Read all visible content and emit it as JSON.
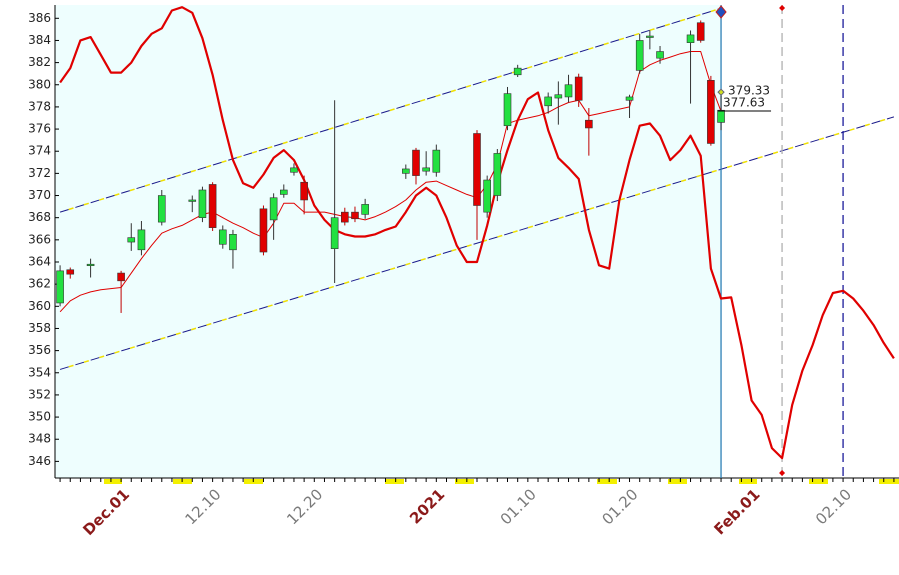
{
  "chart_data": {
    "type": "candlestick",
    "categories": [
      null,
      null,
      null,
      null,
      null,
      null,
      "Dec.01",
      null,
      null,
      null,
      null,
      null,
      null,
      null,
      null,
      "12.10",
      null,
      null,
      null,
      null,
      null,
      null,
      null,
      null,
      null,
      "12.20",
      null,
      null,
      null,
      null,
      null,
      null,
      null,
      null,
      null,
      null,
      null,
      "2021",
      null,
      null,
      null,
      null,
      null,
      null,
      null,
      null,
      "01.10",
      null,
      null,
      null,
      null,
      null,
      null,
      null,
      null,
      null,
      "01.20",
      null,
      null,
      null,
      null,
      null,
      null,
      null,
      null,
      null,
      null,
      null,
      "Feb.01",
      null,
      null,
      null,
      null,
      null,
      null,
      null,
      null,
      "02.10",
      null,
      null,
      null,
      null,
      null
    ],
    "major_ticks": [
      6,
      37,
      68
    ],
    "major_color": "#8b1a1a",
    "minor_color": "#7a7a7a",
    "ylim": [
      344.5,
      387.2
    ],
    "yticks": [
      346,
      348,
      350,
      352,
      354,
      356,
      358,
      360,
      362,
      364,
      366,
      368,
      370,
      372,
      374,
      376,
      378,
      380,
      382,
      384,
      386
    ],
    "up_color": "#22e040",
    "down_color": "#e00000",
    "ohlc": [
      [
        360.3,
        363.7,
        360.0,
        363.2
      ],
      [
        363.3,
        363.5,
        362.5,
        362.9
      ],
      null,
      [
        363.8,
        364.3,
        362.6,
        363.8
      ],
      null,
      null,
      [
        363.0,
        363.2,
        359.4,
        362.3
      ],
      [
        365.8,
        367.5,
        365.0,
        366.2
      ],
      [
        365.1,
        367.7,
        364.6,
        366.9
      ],
      null,
      [
        367.6,
        370.5,
        367.3,
        370.0
      ],
      null,
      null,
      [
        369.5,
        370.0,
        368.5,
        369.6
      ],
      [
        368.0,
        370.8,
        367.6,
        370.5
      ],
      [
        371.0,
        371.2,
        366.8,
        367.1
      ],
      [
        365.6,
        367.3,
        365.2,
        366.9
      ],
      [
        365.1,
        366.9,
        363.4,
        366.5
      ],
      null,
      null,
      [
        368.8,
        369.1,
        364.6,
        364.9
      ],
      [
        367.8,
        370.2,
        366.0,
        369.8
      ],
      [
        370.1,
        371.0,
        369.8,
        370.5
      ],
      [
        372.1,
        372.9,
        371.8,
        372.5
      ],
      [
        371.2,
        371.8,
        368.3,
        369.6
      ],
      null,
      null,
      [
        365.2,
        378.6,
        362.1,
        368.0
      ],
      [
        368.5,
        368.9,
        367.3,
        367.6
      ],
      [
        368.5,
        369.0,
        367.6,
        367.9
      ],
      [
        368.3,
        369.7,
        367.9,
        369.2
      ],
      null,
      null,
      null,
      [
        372.0,
        372.8,
        371.5,
        372.4
      ],
      [
        374.1,
        374.3,
        371.0,
        371.8
      ],
      [
        372.2,
        374.0,
        371.8,
        372.5
      ],
      [
        372.1,
        374.6,
        371.7,
        374.1
      ],
      null,
      null,
      null,
      [
        375.6,
        375.9,
        366.0,
        369.1
      ],
      [
        368.5,
        371.8,
        368.0,
        371.4
      ],
      [
        370.0,
        374.2,
        369.5,
        373.8
      ],
      [
        376.3,
        379.8,
        375.9,
        379.2
      ],
      [
        380.9,
        381.8,
        380.7,
        381.5
      ],
      null,
      null,
      [
        378.1,
        379.3,
        377.4,
        378.9
      ],
      [
        378.8,
        380.3,
        376.4,
        379.1
      ],
      [
        378.9,
        380.9,
        378.4,
        380.0
      ],
      [
        380.7,
        381.0,
        378.0,
        378.6
      ],
      [
        376.8,
        377.9,
        373.6,
        376.1
      ],
      null,
      null,
      null,
      [
        378.6,
        379.1,
        377.0,
        378.9
      ],
      [
        381.3,
        384.6,
        381.0,
        384.0
      ],
      [
        384.4,
        384.9,
        383.2,
        384.4
      ],
      [
        382.4,
        383.5,
        381.9,
        383.0
      ],
      null,
      null,
      [
        383.8,
        384.9,
        378.3,
        384.5
      ],
      [
        385.6,
        385.8,
        383.8,
        384.0
      ],
      [
        380.4,
        380.8,
        374.5,
        374.7
      ],
      [
        376.6,
        379.3,
        375.9,
        377.7
      ],
      null,
      null,
      null,
      null,
      null,
      null,
      null,
      null,
      null,
      null,
      null,
      null,
      null,
      null,
      null,
      null,
      null
    ],
    "series": [
      {
        "color": "#e00000",
        "width": 2.2,
        "values": [
          380.2,
          381.5,
          384.0,
          384.3,
          382.7,
          381.1,
          381.1,
          382.0,
          383.5,
          384.6,
          385.1,
          386.7,
          387.0,
          386.5,
          384.2,
          380.9,
          376.8,
          373.2,
          371.1,
          370.7,
          371.9,
          373.4,
          374.1,
          373.2,
          371.4,
          369.1,
          367.8,
          366.9,
          366.5,
          366.3,
          366.3,
          366.5,
          366.9,
          367.2,
          368.5,
          370.0,
          370.7,
          370.0,
          368.0,
          365.5,
          364.0,
          364.0,
          367.3,
          371.1,
          374.1,
          376.8,
          378.7,
          379.3,
          375.9,
          373.4,
          372.5,
          371.5,
          366.9,
          363.7,
          363.4,
          369.6,
          373.2,
          376.3,
          376.5,
          375.4,
          373.2,
          374.1,
          375.4,
          373.6,
          363.4,
          360.7,
          360.8,
          356.5,
          351.5,
          350.2,
          347.2,
          346.3,
          351.1,
          354.2,
          356.5,
          359.2,
          361.2,
          361.4,
          360.7,
          359.6,
          358.3,
          356.7,
          355.3
        ]
      },
      {
        "color": "#e00000",
        "width": 1,
        "values": [
          359.5,
          360.5,
          361.0,
          361.3,
          361.5,
          361.6,
          361.7,
          363.0,
          364.3,
          365.5,
          366.6,
          367.0,
          367.3,
          367.8,
          368.3,
          368.5,
          368.0,
          367.5,
          367.1,
          366.6,
          366.2,
          367.5,
          369.3,
          369.3,
          368.5,
          368.5,
          368.5,
          368.3,
          368.1,
          368.0,
          367.8,
          368.1,
          368.5,
          369.0,
          369.6,
          370.5,
          371.2,
          371.3,
          370.9,
          370.5,
          370.1,
          369.8,
          371.0,
          372.8,
          376.5,
          376.8,
          377.0,
          377.2,
          377.5,
          378.0,
          378.4,
          378.6,
          377.2,
          377.4,
          377.6,
          377.8,
          378.0,
          381.2,
          381.8,
          382.2,
          382.5,
          382.8,
          383.0,
          383.0,
          380.0,
          377.6,
          null,
          null,
          null,
          null,
          null,
          null,
          null,
          null,
          null,
          null,
          null,
          null,
          null,
          null,
          null,
          null,
          null
        ]
      }
    ],
    "trend_lines": [
      {
        "x": [
          0,
          65
        ],
        "values": [
          368.5,
          386.9
        ]
      },
      {
        "x": [
          0,
          82
        ],
        "values": [
          354.3,
          377.1
        ]
      }
    ],
    "price_labels": [
      379.33,
      377.63
    ],
    "vlines": [
      {
        "x": 65,
        "color": "#2f7fb5",
        "dash": "none"
      },
      {
        "x": 71,
        "color": "#b0b0b0",
        "dash": "9,5"
      },
      {
        "x": 77,
        "color": "#1a1a9a",
        "dash": "9,5"
      }
    ]
  }
}
